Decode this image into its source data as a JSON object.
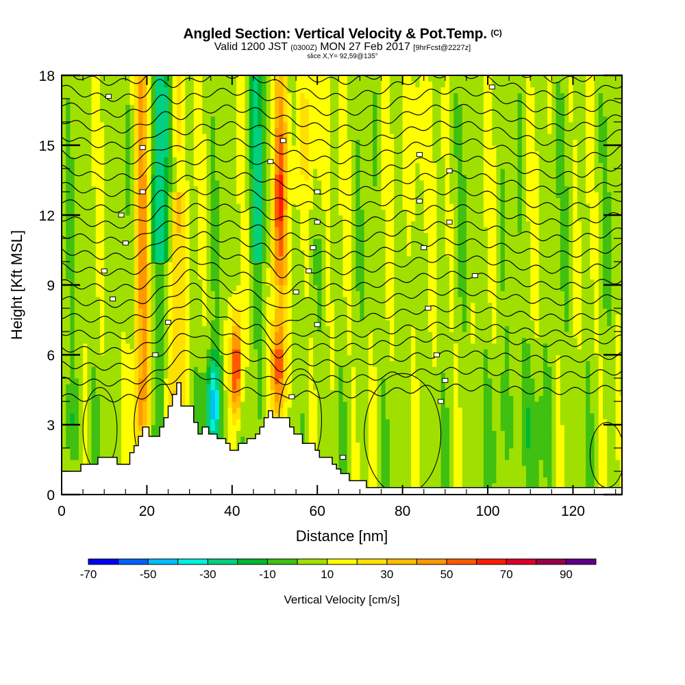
{
  "header": {
    "title": "Angled Section: Vertical Velocity & Pot.Temp.",
    "title_mark": "(C)",
    "valid_prefix": "Valid 1200 JST",
    "valid_utc": "(0300Z)",
    "valid_date": "MON 27 Feb 2017",
    "forecast": "[9hrFcst@2227z]",
    "slice": "slice X,Y= 92,59@135°"
  },
  "chart_data": {
    "type": "heatmap",
    "title": "Angled Section: Vertical Velocity & Pot.Temp.",
    "xlabel": "Distance [nm]",
    "ylabel": "Height [Kft MSL]",
    "xlim": [
      0,
      131.5
    ],
    "ylim": [
      0,
      18
    ],
    "xticks": [
      0,
      20,
      40,
      60,
      80,
      100,
      120
    ],
    "yticks": [
      0,
      3,
      6,
      9,
      12,
      15,
      18
    ],
    "x_minor_step": 5,
    "y_minor_step": 1,
    "fill_variable": "Vertical Velocity [cm/s]",
    "contour_variable": "Potential Temperature",
    "colorbar": {
      "label": "Vertical Velocity [cm/s]",
      "placement": "bottom",
      "bounds": [
        -70,
        -60,
        -50,
        -40,
        -30,
        -20,
        -10,
        0,
        10,
        20,
        30,
        40,
        50,
        60,
        70,
        80,
        90,
        100
      ],
      "tick_labels": [
        "-70",
        "-50",
        "-30",
        "-10",
        "10",
        "30",
        "50",
        "70",
        "90"
      ],
      "colors": [
        "#0000f6",
        "#0060ff",
        "#00beff",
        "#00f0e0",
        "#00d080",
        "#00b830",
        "#40c010",
        "#a0e000",
        "#ffff00",
        "#ffe000",
        "#ffbc00",
        "#ff9800",
        "#ff5800",
        "#ff1c00",
        "#dc0028",
        "#98004c",
        "#5c0088"
      ]
    },
    "updraft_columns_nm": [
      19,
      27,
      41,
      51
    ],
    "downdraft_columns_nm": [
      23,
      35
    ],
    "terrain_profile": {
      "x_nm": [
        0,
        4.5,
        4.5,
        8.5,
        8.5,
        13,
        13,
        16,
        16,
        17,
        17,
        18,
        18,
        19,
        19,
        20.5,
        20.5,
        23,
        23,
        24,
        24,
        25,
        25,
        26,
        26,
        27,
        27,
        28,
        28,
        31,
        31,
        32,
        32,
        33,
        33,
        34.5,
        34.5,
        36.5,
        36.5,
        38.5,
        38.5,
        39.5,
        39.5,
        41.5,
        41.5,
        43.5,
        43.5,
        45.5,
        45.5,
        46.5,
        46.5,
        47.5,
        47.5,
        48.5,
        48.5,
        49.5,
        49.5,
        53.5,
        53.5,
        54.5,
        54.5,
        56.5,
        56.5,
        59.5,
        59.5,
        60.5,
        60.5,
        63.5,
        63.5,
        64.5,
        64.5,
        65.5,
        65.5,
        67.5,
        67.5,
        71.5,
        71.5,
        131.5
      ],
      "z_kft": [
        1.0,
        1.0,
        1.3,
        1.3,
        1.6,
        1.6,
        1.3,
        1.3,
        1.8,
        1.8,
        2.1,
        2.1,
        2.5,
        2.5,
        2.9,
        2.9,
        2.5,
        2.5,
        2.9,
        2.9,
        3.3,
        3.3,
        3.8,
        3.8,
        4.3,
        4.3,
        4.8,
        4.8,
        3.8,
        3.8,
        3.1,
        3.1,
        2.6,
        2.6,
        2.9,
        2.9,
        2.6,
        2.6,
        2.4,
        2.4,
        2.2,
        2.2,
        1.9,
        1.9,
        2.2,
        2.2,
        2.4,
        2.4,
        2.6,
        2.6,
        2.9,
        2.9,
        3.3,
        3.3,
        3.6,
        3.6,
        3.3,
        3.3,
        2.9,
        2.9,
        2.6,
        2.6,
        2.2,
        2.2,
        1.9,
        1.9,
        1.6,
        1.6,
        1.3,
        1.3,
        1.1,
        1.1,
        0.9,
        0.9,
        0.6,
        0.6,
        0.3,
        0.3
      ]
    }
  }
}
